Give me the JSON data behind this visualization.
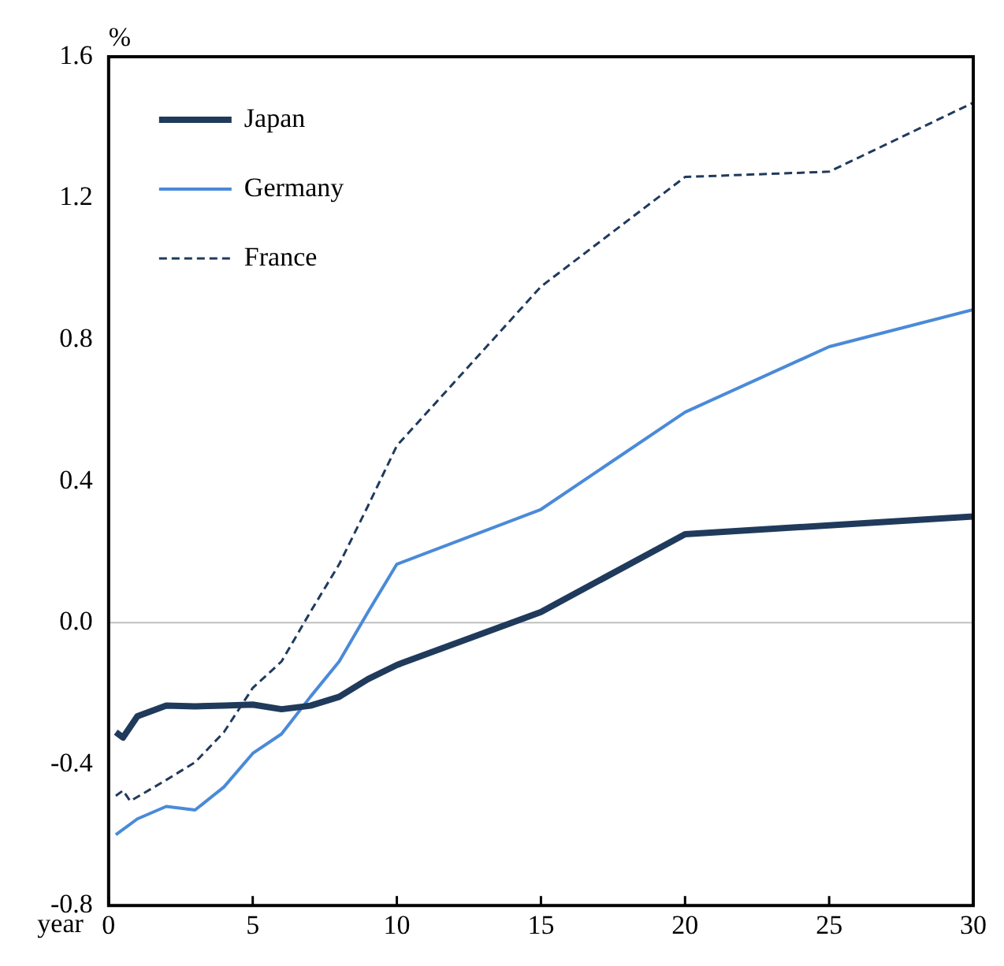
{
  "chart_data": {
    "type": "line",
    "xlabel": "year",
    "ylabel": "%",
    "xlim": [
      0,
      30
    ],
    "xticks": [
      0,
      5,
      10,
      15,
      20,
      25,
      30
    ],
    "ylim": [
      -0.8,
      1.6
    ],
    "yticks": [
      {
        "value": -0.8,
        "label": "-0.8"
      },
      {
        "value": -0.4,
        "label": "-0.4"
      },
      {
        "value": 0,
        "label": "0.0"
      },
      {
        "value": 0.4,
        "label": "0.4"
      },
      {
        "value": 0.8,
        "label": "0.8"
      },
      {
        "value": 1.2,
        "label": "1.2"
      },
      {
        "value": 1.6,
        "label": "1.6"
      }
    ],
    "grid": false,
    "legend": "top left",
    "ref_lines": [
      {
        "axis": "y",
        "value": 0,
        "color": "#bfbfbf"
      }
    ],
    "series": [
      {
        "name": "Japan",
        "color": "#203a5c",
        "line_style": "solid",
        "x": [
          0.25,
          0.5,
          1,
          2,
          3,
          4,
          5,
          6,
          7,
          8,
          9,
          10,
          15,
          20,
          25,
          30
        ],
        "values": [
          -0.31,
          -0.325,
          -0.265,
          -0.235,
          -0.237,
          -0.235,
          -0.232,
          -0.245,
          -0.235,
          -0.21,
          -0.16,
          -0.12,
          0.03,
          0.25,
          0.275,
          0.3
        ]
      },
      {
        "name": "Germany",
        "color": "#4a8ad8",
        "line_style": "solid",
        "x": [
          0.25,
          1,
          2,
          3,
          4,
          5,
          6,
          7,
          8,
          9,
          10,
          15,
          20,
          25,
          30
        ],
        "values": [
          -0.6,
          -0.555,
          -0.52,
          -0.53,
          -0.465,
          -0.37,
          -0.315,
          -0.21,
          -0.11,
          0.03,
          0.165,
          0.32,
          0.595,
          0.78,
          0.885
        ]
      },
      {
        "name": "France",
        "color": "#203a5c",
        "line_style": "dashed",
        "x": [
          0.25,
          0.5,
          0.75,
          2,
          3,
          4,
          5,
          6,
          7,
          8,
          9,
          10,
          15,
          20,
          25,
          30
        ],
        "values": [
          -0.49,
          -0.475,
          -0.505,
          -0.445,
          -0.395,
          -0.31,
          -0.185,
          -0.11,
          0.03,
          0.165,
          0.33,
          0.5,
          0.95,
          1.26,
          1.275,
          1.47
        ]
      }
    ]
  }
}
